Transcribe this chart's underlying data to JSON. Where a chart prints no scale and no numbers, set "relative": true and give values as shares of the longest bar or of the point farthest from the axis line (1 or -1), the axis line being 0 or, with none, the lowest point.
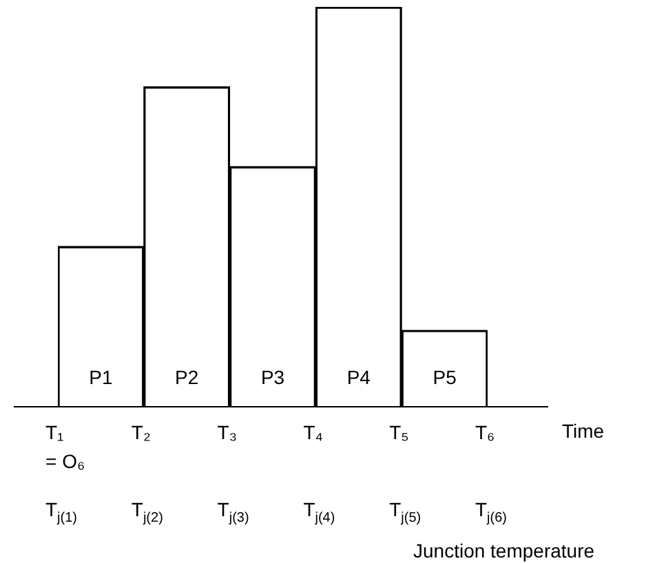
{
  "chart_data": {
    "type": "bar",
    "relative": true,
    "categories": [
      "P1",
      "P2",
      "P3",
      "P4",
      "P5"
    ],
    "values": [
      0.4,
      0.8,
      0.6,
      1.0,
      0.19
    ],
    "color": "#000000",
    "xlabel": "Time",
    "legend": false,
    "annotations": [
      "T₁",
      "T₂",
      "T₃",
      "T₄",
      "T₅",
      "T₆",
      "= O₆",
      "T$_{j(1)}$",
      "T$_{j(2)}$",
      "T$_{j(3)}$",
      "T$_{j(4)}$",
      "T$_{j(5)}$",
      "T$_{j(6)}$",
      "Junction temperature"
    ]
  }
}
